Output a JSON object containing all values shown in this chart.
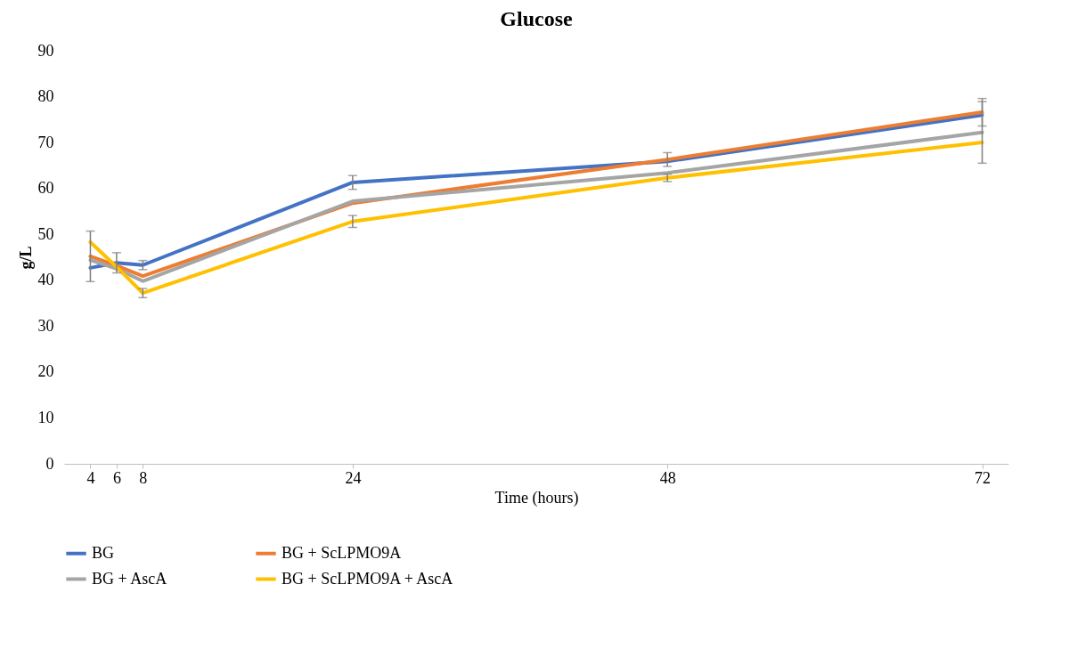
{
  "chart_data": {
    "type": "line",
    "title": "Glucose",
    "xlabel": "Time (hours)",
    "ylabel": "g/L",
    "x": [
      4,
      6,
      8,
      24,
      48,
      72
    ],
    "xlim": [
      2,
      74
    ],
    "xticks": [
      4,
      6,
      8,
      24,
      48,
      72
    ],
    "ylim": [
      0,
      90
    ],
    "yticks": [
      0,
      10,
      20,
      30,
      40,
      50,
      60,
      70,
      80,
      90
    ],
    "grid": false,
    "legend": "bottom",
    "marker": "none",
    "line_style": "solid",
    "series": [
      {
        "name": "BG",
        "color": "#4472c4",
        "values": [
          42.7,
          43.8,
          43.3,
          61.3,
          65.9,
          76.0
        ],
        "errors": [
          null,
          2.2,
          1,
          1.5,
          null,
          null
        ]
      },
      {
        "name": "BG + ScLPMO9A",
        "color": "#ed7d31",
        "values": [
          45.2,
          43.2,
          40.9,
          56.8,
          66.3,
          76.6
        ],
        "errors": [
          5.5,
          null,
          null,
          null,
          1.5,
          3
        ]
      },
      {
        "name": "BG + AscA",
        "color": "#a5a5a5",
        "values": [
          44.4,
          42.5,
          39.8,
          57.2,
          63.4,
          72.2
        ],
        "errors": [
          null,
          null,
          null,
          null,
          null,
          6.7
        ]
      },
      {
        "name": "BG + ScLPMO9A + AscA",
        "color": "#ffc000",
        "values": [
          48.3,
          42.9,
          37.2,
          52.8,
          62.3,
          70.0
        ],
        "errors": [
          null,
          null,
          1,
          1.3,
          0.8,
          null
        ]
      }
    ]
  }
}
